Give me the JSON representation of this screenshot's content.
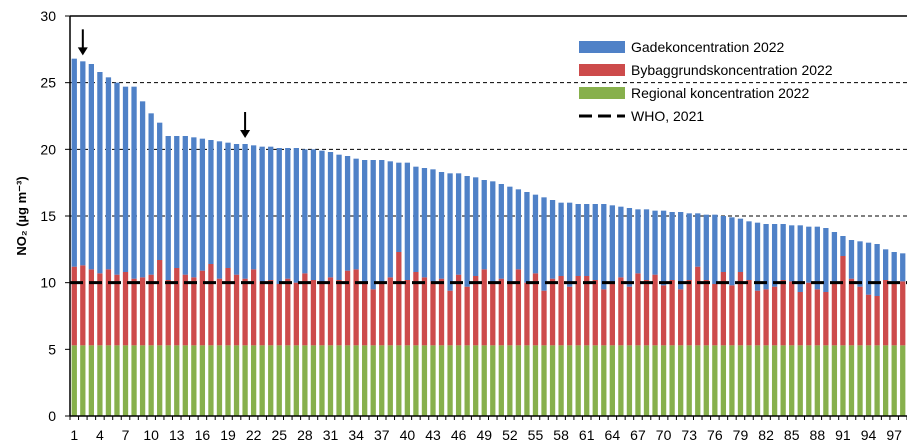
{
  "chart_data": {
    "type": "bar",
    "stacked": true,
    "ylabel": "NO₂ (µg m⁻³)",
    "ylim": [
      0,
      30
    ],
    "yticks": [
      0,
      5,
      10,
      15,
      20,
      25,
      30
    ],
    "grid": "dashed horizontal at 15, 20, 25, 30",
    "legend_position": "top-right",
    "x": [
      1,
      2,
      3,
      4,
      5,
      6,
      7,
      8,
      9,
      10,
      11,
      12,
      13,
      14,
      15,
      16,
      17,
      18,
      19,
      20,
      21,
      22,
      23,
      24,
      25,
      26,
      27,
      28,
      29,
      30,
      31,
      32,
      33,
      34,
      35,
      36,
      37,
      38,
      39,
      40,
      41,
      42,
      43,
      44,
      45,
      46,
      47,
      48,
      49,
      50,
      51,
      52,
      53,
      54,
      55,
      56,
      57,
      58,
      59,
      60,
      61,
      62,
      63,
      64,
      65,
      66,
      67,
      68,
      69,
      70,
      71,
      72,
      73,
      74,
      75,
      76,
      77,
      78,
      79,
      80,
      81,
      82,
      83,
      84,
      85,
      86,
      87,
      88,
      89,
      90,
      91,
      92,
      93,
      94,
      95,
      96,
      97,
      98
    ],
    "xtick_labels": [
      "1",
      "4",
      "7",
      "10",
      "13",
      "16",
      "19",
      "22",
      "25",
      "28",
      "31",
      "34",
      "37",
      "40",
      "43",
      "46",
      "49",
      "52",
      "55",
      "58",
      "61",
      "64",
      "67",
      "70",
      "73",
      "76",
      "79",
      "82",
      "85",
      "88",
      "91",
      "94",
      "97"
    ],
    "series": [
      {
        "name": "Gadekoncentration 2022",
        "color": "#4f81c7",
        "totals": [
          26.8,
          26.6,
          26.4,
          25.8,
          25.4,
          25.0,
          24.7,
          24.7,
          23.6,
          22.7,
          22.0,
          21.0,
          21.0,
          21.0,
          20.9,
          20.8,
          20.7,
          20.6,
          20.5,
          20.4,
          20.4,
          20.3,
          20.2,
          20.2,
          20.1,
          20.1,
          20.1,
          20.0,
          20.0,
          19.9,
          19.8,
          19.6,
          19.5,
          19.3,
          19.2,
          19.2,
          19.2,
          19.1,
          19.0,
          19.0,
          18.7,
          18.6,
          18.5,
          18.3,
          18.2,
          18.2,
          18.0,
          17.9,
          17.7,
          17.6,
          17.4,
          17.2,
          17.0,
          16.8,
          16.6,
          16.4,
          16.2,
          16.0,
          16.0,
          15.9,
          15.9,
          15.9,
          15.9,
          15.8,
          15.7,
          15.6,
          15.5,
          15.5,
          15.4,
          15.4,
          15.3,
          15.3,
          15.2,
          15.2,
          15.1,
          15.1,
          15.0,
          14.9,
          14.8,
          14.6,
          14.5,
          14.4,
          14.4,
          14.4,
          14.3,
          14.3,
          14.2,
          14.2,
          14.1,
          13.8,
          13.5,
          13.2,
          13.1,
          13.0,
          12.9,
          12.5,
          12.3,
          12.2
        ]
      },
      {
        "name": "Bybaggrundskoncentration 2022",
        "color": "#cd4b4b",
        "totals": [
          11.2,
          11.3,
          11.0,
          10.7,
          11.0,
          10.6,
          10.8,
          10.3,
          10.4,
          10.6,
          11.7,
          10.2,
          11.1,
          10.6,
          10.4,
          10.9,
          11.4,
          10.3,
          11.1,
          10.6,
          10.3,
          11.0,
          10.1,
          10.2,
          9.9,
          10.3,
          10.0,
          10.7,
          10.2,
          9.9,
          10.4,
          10.2,
          10.9,
          11.0,
          10.0,
          9.5,
          10.0,
          10.4,
          12.3,
          10.2,
          10.8,
          10.4,
          10.1,
          10.3,
          9.4,
          10.6,
          9.7,
          10.5,
          11.0,
          9.9,
          10.3,
          10.1,
          11.0,
          10.0,
          10.7,
          9.4,
          10.3,
          10.5,
          9.7,
          10.5,
          10.5,
          10.2,
          9.5,
          10.0,
          10.4,
          9.7,
          10.7,
          10.2,
          10.6,
          9.8,
          10.2,
          9.5,
          10.2,
          11.2,
          10.2,
          9.9,
          10.8,
          9.8,
          10.8,
          10.2,
          9.4,
          9.5,
          9.7,
          10.2,
          10.1,
          9.3,
          10.0,
          9.5,
          9.3,
          10.1,
          12.0,
          10.3,
          9.7,
          9.1,
          9.0,
          10.2,
          10.1,
          10.1
        ]
      },
      {
        "name": "Regional koncentration 2022",
        "color": "#87b04c",
        "value": 5.3
      }
    ],
    "reference_line": {
      "name": "WHO, 2021",
      "value": 10,
      "style": "dashed",
      "color": "#000000"
    },
    "annotations": [
      {
        "type": "arrow",
        "x": 2
      },
      {
        "type": "arrow",
        "x": 21
      }
    ]
  }
}
